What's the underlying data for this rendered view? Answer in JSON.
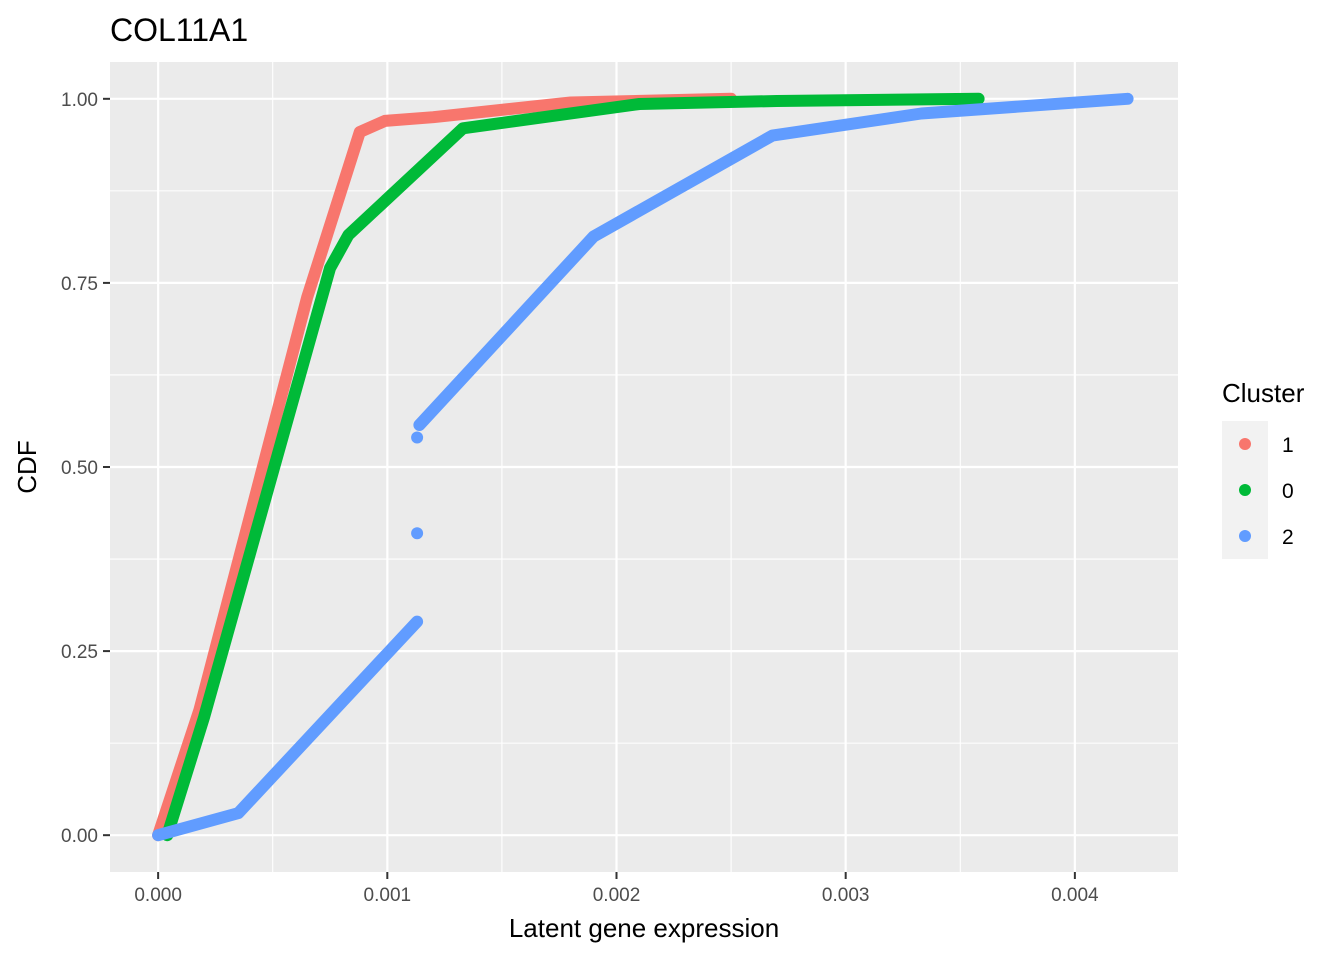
{
  "chart_data": {
    "type": "line",
    "title": "COL11A1",
    "xlabel": "Latent gene expression",
    "ylabel": "CDF",
    "xlim": [
      -0.00021,
      0.00445
    ],
    "ylim": [
      -0.05,
      1.05
    ],
    "x_ticks": [
      0.0,
      0.001,
      0.002,
      0.003,
      0.004
    ],
    "x_tick_labels": [
      "0.000",
      "0.001",
      "0.002",
      "0.003",
      "0.004"
    ],
    "y_ticks": [
      0.0,
      0.25,
      0.5,
      0.75,
      1.0
    ],
    "y_tick_labels": [
      "0.00",
      "0.25",
      "0.50",
      "0.75",
      "1.00"
    ],
    "grid": true,
    "legend": {
      "title": "Cluster",
      "position": "right"
    },
    "series": [
      {
        "name": "1",
        "color": "#F8766D",
        "segments": [
          [
            [
              0.0,
              0.0
            ],
            [
              0.00018,
              0.17
            ],
            [
              0.00065,
              0.73
            ],
            [
              0.00088,
              0.955
            ],
            [
              0.00099,
              0.97
            ],
            [
              0.0012,
              0.975
            ],
            [
              0.0018,
              0.995
            ],
            [
              0.0025,
              1.0
            ]
          ]
        ],
        "points": []
      },
      {
        "name": "0",
        "color": "#00BA38",
        "segments": [
          [
            [
              4e-05,
              0.0
            ],
            [
              0.0002,
              0.16
            ],
            [
              0.00075,
              0.77
            ],
            [
              0.00083,
              0.815
            ],
            [
              0.00133,
              0.96
            ],
            [
              0.0021,
              0.993
            ],
            [
              0.0027,
              0.997
            ],
            [
              0.00358,
              1.0
            ]
          ]
        ],
        "points": []
      },
      {
        "name": "2",
        "color": "#619CFF",
        "segments": [
          [
            [
              0.0,
              0.0
            ],
            [
              0.00035,
              0.03
            ],
            [
              0.00113,
              0.29
            ]
          ],
          [
            [
              0.00114,
              0.557
            ],
            [
              0.0019,
              0.813
            ],
            [
              0.00268,
              0.95
            ],
            [
              0.00333,
              0.98
            ],
            [
              0.00423,
              1.0
            ]
          ]
        ],
        "points": [
          [
            0.00113,
            0.41
          ],
          [
            0.00113,
            0.54
          ]
        ]
      }
    ]
  }
}
